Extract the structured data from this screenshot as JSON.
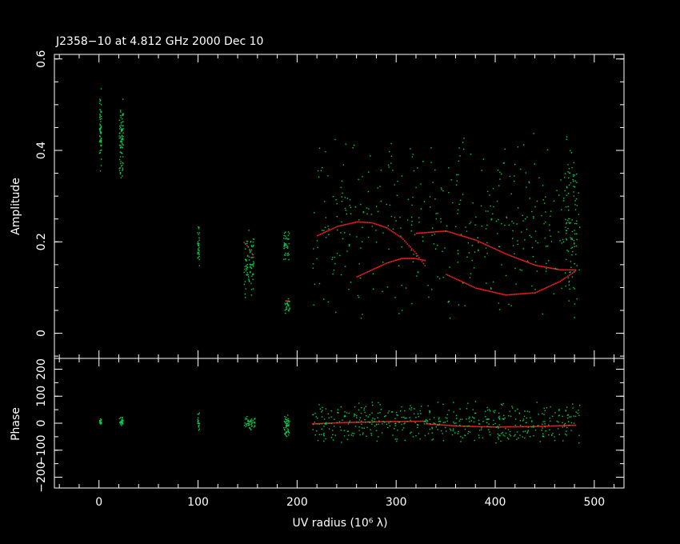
{
  "title": "J2358−10 at 4.812 GHz 2000 Dec 10",
  "colors": {
    "background": "#000000",
    "axes": "#ffffff",
    "data": "#00d050",
    "model": "#ff2020"
  },
  "chart_data": [
    {
      "type": "scatter",
      "panel": "amplitude",
      "xlabel_shared": true,
      "ylabel": "Amplitude",
      "xlim": [
        -45,
        530
      ],
      "ylim": [
        -0.055,
        0.61
      ],
      "yticks": [
        0,
        0.2,
        0.4,
        0.6
      ],
      "ytick_labels": [
        "0",
        "0.2",
        "0.4",
        "0.6"
      ],
      "series": [
        {
          "role": "data",
          "clusters": [
            {
              "x_range": [
                0,
                2
              ],
              "y_range": [
                0.33,
                0.56
              ],
              "n": 60
            },
            {
              "x_range": [
                20,
                24
              ],
              "y_range": [
                0.33,
                0.52
              ],
              "n": 90
            },
            {
              "x_range": [
                99,
                101
              ],
              "y_range": [
                0.14,
                0.25
              ],
              "n": 30
            },
            {
              "x_range": [
                146,
                156
              ],
              "y_range": [
                0.07,
                0.23
              ],
              "n": 80
            },
            {
              "x_range": [
                186,
                192
              ],
              "y_range": [
                0.16,
                0.23
              ],
              "n": 40
            },
            {
              "x_range": [
                187,
                192
              ],
              "y_range": [
                0.04,
                0.08
              ],
              "n": 25
            },
            {
              "x_range": [
                215,
                485
              ],
              "y_range": [
                0.02,
                0.46
              ],
              "n": 420
            },
            {
              "x_range": [
                470,
                482
              ],
              "y_range": [
                0.02,
                0.44
              ],
              "n": 90
            }
          ]
        },
        {
          "role": "model",
          "curves": [
            {
              "x": [
                220,
                240,
                260,
                275,
                290,
                305,
                318,
                330
              ],
              "y": [
                0.215,
                0.235,
                0.245,
                0.243,
                0.232,
                0.21,
                0.18,
                0.145
              ]
            },
            {
              "x": [
                260,
                275,
                290,
                305,
                318,
                330
              ],
              "y": [
                0.125,
                0.14,
                0.155,
                0.165,
                0.165,
                0.16
              ]
            },
            {
              "x": [
                320,
                350,
                380,
                410,
                440,
                465,
                482
              ],
              "y": [
                0.22,
                0.225,
                0.205,
                0.175,
                0.15,
                0.14,
                0.14
              ]
            },
            {
              "x": [
                350,
                380,
                410,
                440,
                465,
                482
              ],
              "y": [
                0.13,
                0.1,
                0.085,
                0.09,
                0.115,
                0.14
              ]
            },
            {
              "x": [
                146,
                150,
                154,
                157
              ],
              "y": [
                0.2,
                0.19,
                0.175,
                0.16
              ]
            },
            {
              "x": [
                188,
                192
              ],
              "y": [
                0.072,
                0.072
              ]
            }
          ]
        }
      ]
    },
    {
      "type": "scatter",
      "panel": "phase",
      "xlabel": "UV radius  (10⁶ λ)",
      "ylabel": "Phase",
      "xlim": [
        -45,
        530
      ],
      "ylim": [
        -240,
        240
      ],
      "xticks": [
        0,
        100,
        200,
        300,
        400,
        500
      ],
      "xtick_labels": [
        "0",
        "100",
        "200",
        "300",
        "400",
        "500"
      ],
      "yticks": [
        -200,
        -100,
        0,
        100,
        200
      ],
      "ytick_labels": [
        "−200",
        "−100",
        "0",
        "100",
        "200"
      ],
      "series": [
        {
          "role": "data",
          "clusters": [
            {
              "x_range": [
                0,
                2
              ],
              "y_range": [
                -10,
                20
              ],
              "n": 20
            },
            {
              "x_range": [
                20,
                24
              ],
              "y_range": [
                -10,
                25
              ],
              "n": 30
            },
            {
              "x_range": [
                99,
                101
              ],
              "y_range": [
                -35,
                45
              ],
              "n": 20
            },
            {
              "x_range": [
                146,
                157
              ],
              "y_range": [
                -25,
                30
              ],
              "n": 50
            },
            {
              "x_range": [
                186,
                192
              ],
              "y_range": [
                -60,
                40
              ],
              "n": 50
            },
            {
              "x_range": [
                215,
                485
              ],
              "y_range": [
                -80,
                90
              ],
              "n": 500
            }
          ]
        },
        {
          "role": "model",
          "curves": [
            {
              "x": [
                215,
                250,
                290,
                330
              ],
              "y": [
                0,
                5,
                8,
                10
              ]
            },
            {
              "x": [
                330,
                360,
                400,
                440,
                482
              ],
              "y": [
                0,
                -8,
                -12,
                -10,
                -5
              ]
            }
          ]
        }
      ]
    }
  ]
}
